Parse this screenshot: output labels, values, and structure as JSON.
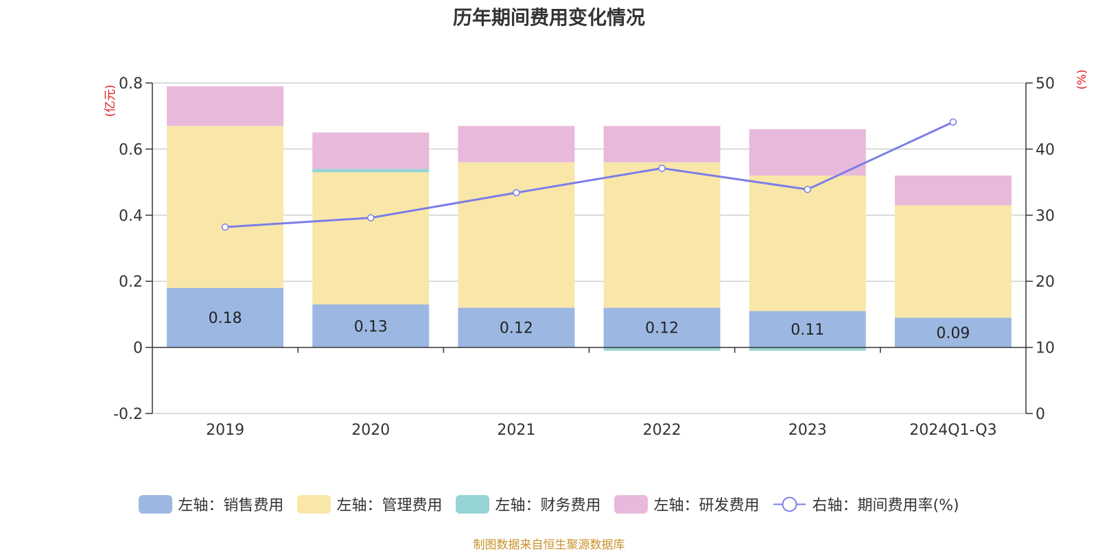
{
  "chart_data": {
    "type": "bar",
    "stacked": true,
    "title": "历年期间费用变化情况",
    "categories": [
      "2019",
      "2020",
      "2021",
      "2022",
      "2023",
      "2024Q1-Q3"
    ],
    "left_axis": {
      "unit": "(亿元)",
      "ylim": [
        -0.2,
        0.8
      ],
      "ticks": [
        "-0.2",
        "0",
        "0.2",
        "0.4",
        "0.6",
        "0.8"
      ]
    },
    "right_axis": {
      "unit": "(%)",
      "ylim": [
        0,
        50
      ],
      "ticks": [
        "0",
        "10",
        "20",
        "30",
        "40",
        "50"
      ]
    },
    "series": [
      {
        "name": "左轴：销售费用",
        "type": "bar",
        "axis": "left",
        "color": "#9cb8e2",
        "values": [
          0.18,
          0.13,
          0.12,
          0.12,
          0.11,
          0.09
        ],
        "labels": [
          "0.18",
          "0.13",
          "0.12",
          "0.12",
          "0.11",
          "0.09"
        ]
      },
      {
        "name": "左轴：管理费用",
        "type": "bar",
        "axis": "left",
        "color": "#f8e7a8",
        "values": [
          0.49,
          0.4,
          0.44,
          0.44,
          0.41,
          0.34
        ]
      },
      {
        "name": "左轴：财务费用",
        "type": "bar",
        "axis": "left",
        "color": "#96d4d6",
        "values": [
          0.0,
          0.01,
          0.0,
          -0.01,
          -0.01,
          0.0
        ]
      },
      {
        "name": "左轴：研发费用",
        "type": "bar",
        "axis": "left",
        "color": "#e8b9da",
        "values": [
          0.12,
          0.11,
          0.11,
          0.11,
          0.14,
          0.09
        ]
      },
      {
        "name": "右轴：期间费用率(%)",
        "type": "line",
        "axis": "right",
        "color": "#7b7de8",
        "values": [
          28.2,
          29.6,
          33.4,
          37.1,
          33.9,
          44.1
        ]
      }
    ],
    "grid": true,
    "legend_position": "bottom"
  },
  "source": "制图数据来自恒生聚源数据库"
}
